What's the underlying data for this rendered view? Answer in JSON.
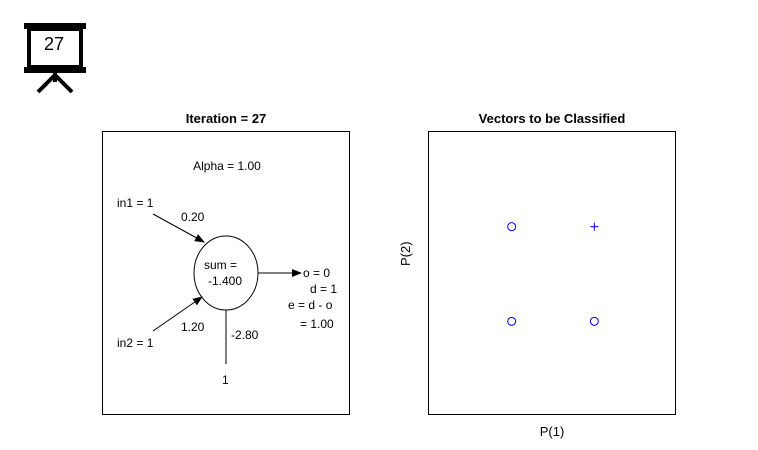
{
  "badge": {
    "number": "27",
    "icon": "presentation-board-icon"
  },
  "network_panel": {
    "title": "Iteration = 27",
    "alpha": "Alpha = 1.00",
    "in1": "in1 = 1",
    "w1": "0.20",
    "in2": "in2 = 1",
    "w2": "1.20",
    "bias_weight": "-2.80",
    "bias_input": "1",
    "sum_label": "sum =",
    "sum_value": "-1.400",
    "output": "o = 0",
    "desired": "d = 1",
    "error_label": "e = d - o",
    "error_value": "= 1.00"
  },
  "chart_data": {
    "type": "scatter",
    "title": "Vectors to be Classified",
    "xlabel": "P(1)",
    "ylabel": "P(2)",
    "color": "#0000ff",
    "points": [
      {
        "x": 0,
        "y": 0,
        "marker": "o"
      },
      {
        "x": 1,
        "y": 0,
        "marker": "o"
      },
      {
        "x": 0,
        "y": 1,
        "marker": "o"
      },
      {
        "x": 1,
        "y": 1,
        "marker": "+"
      }
    ],
    "decision_boundary": {
      "w1": 0.2,
      "w2": 1.2,
      "bias": -2.8
    },
    "xlim": [
      -1,
      2
    ],
    "ylim": [
      -1,
      2
    ]
  }
}
